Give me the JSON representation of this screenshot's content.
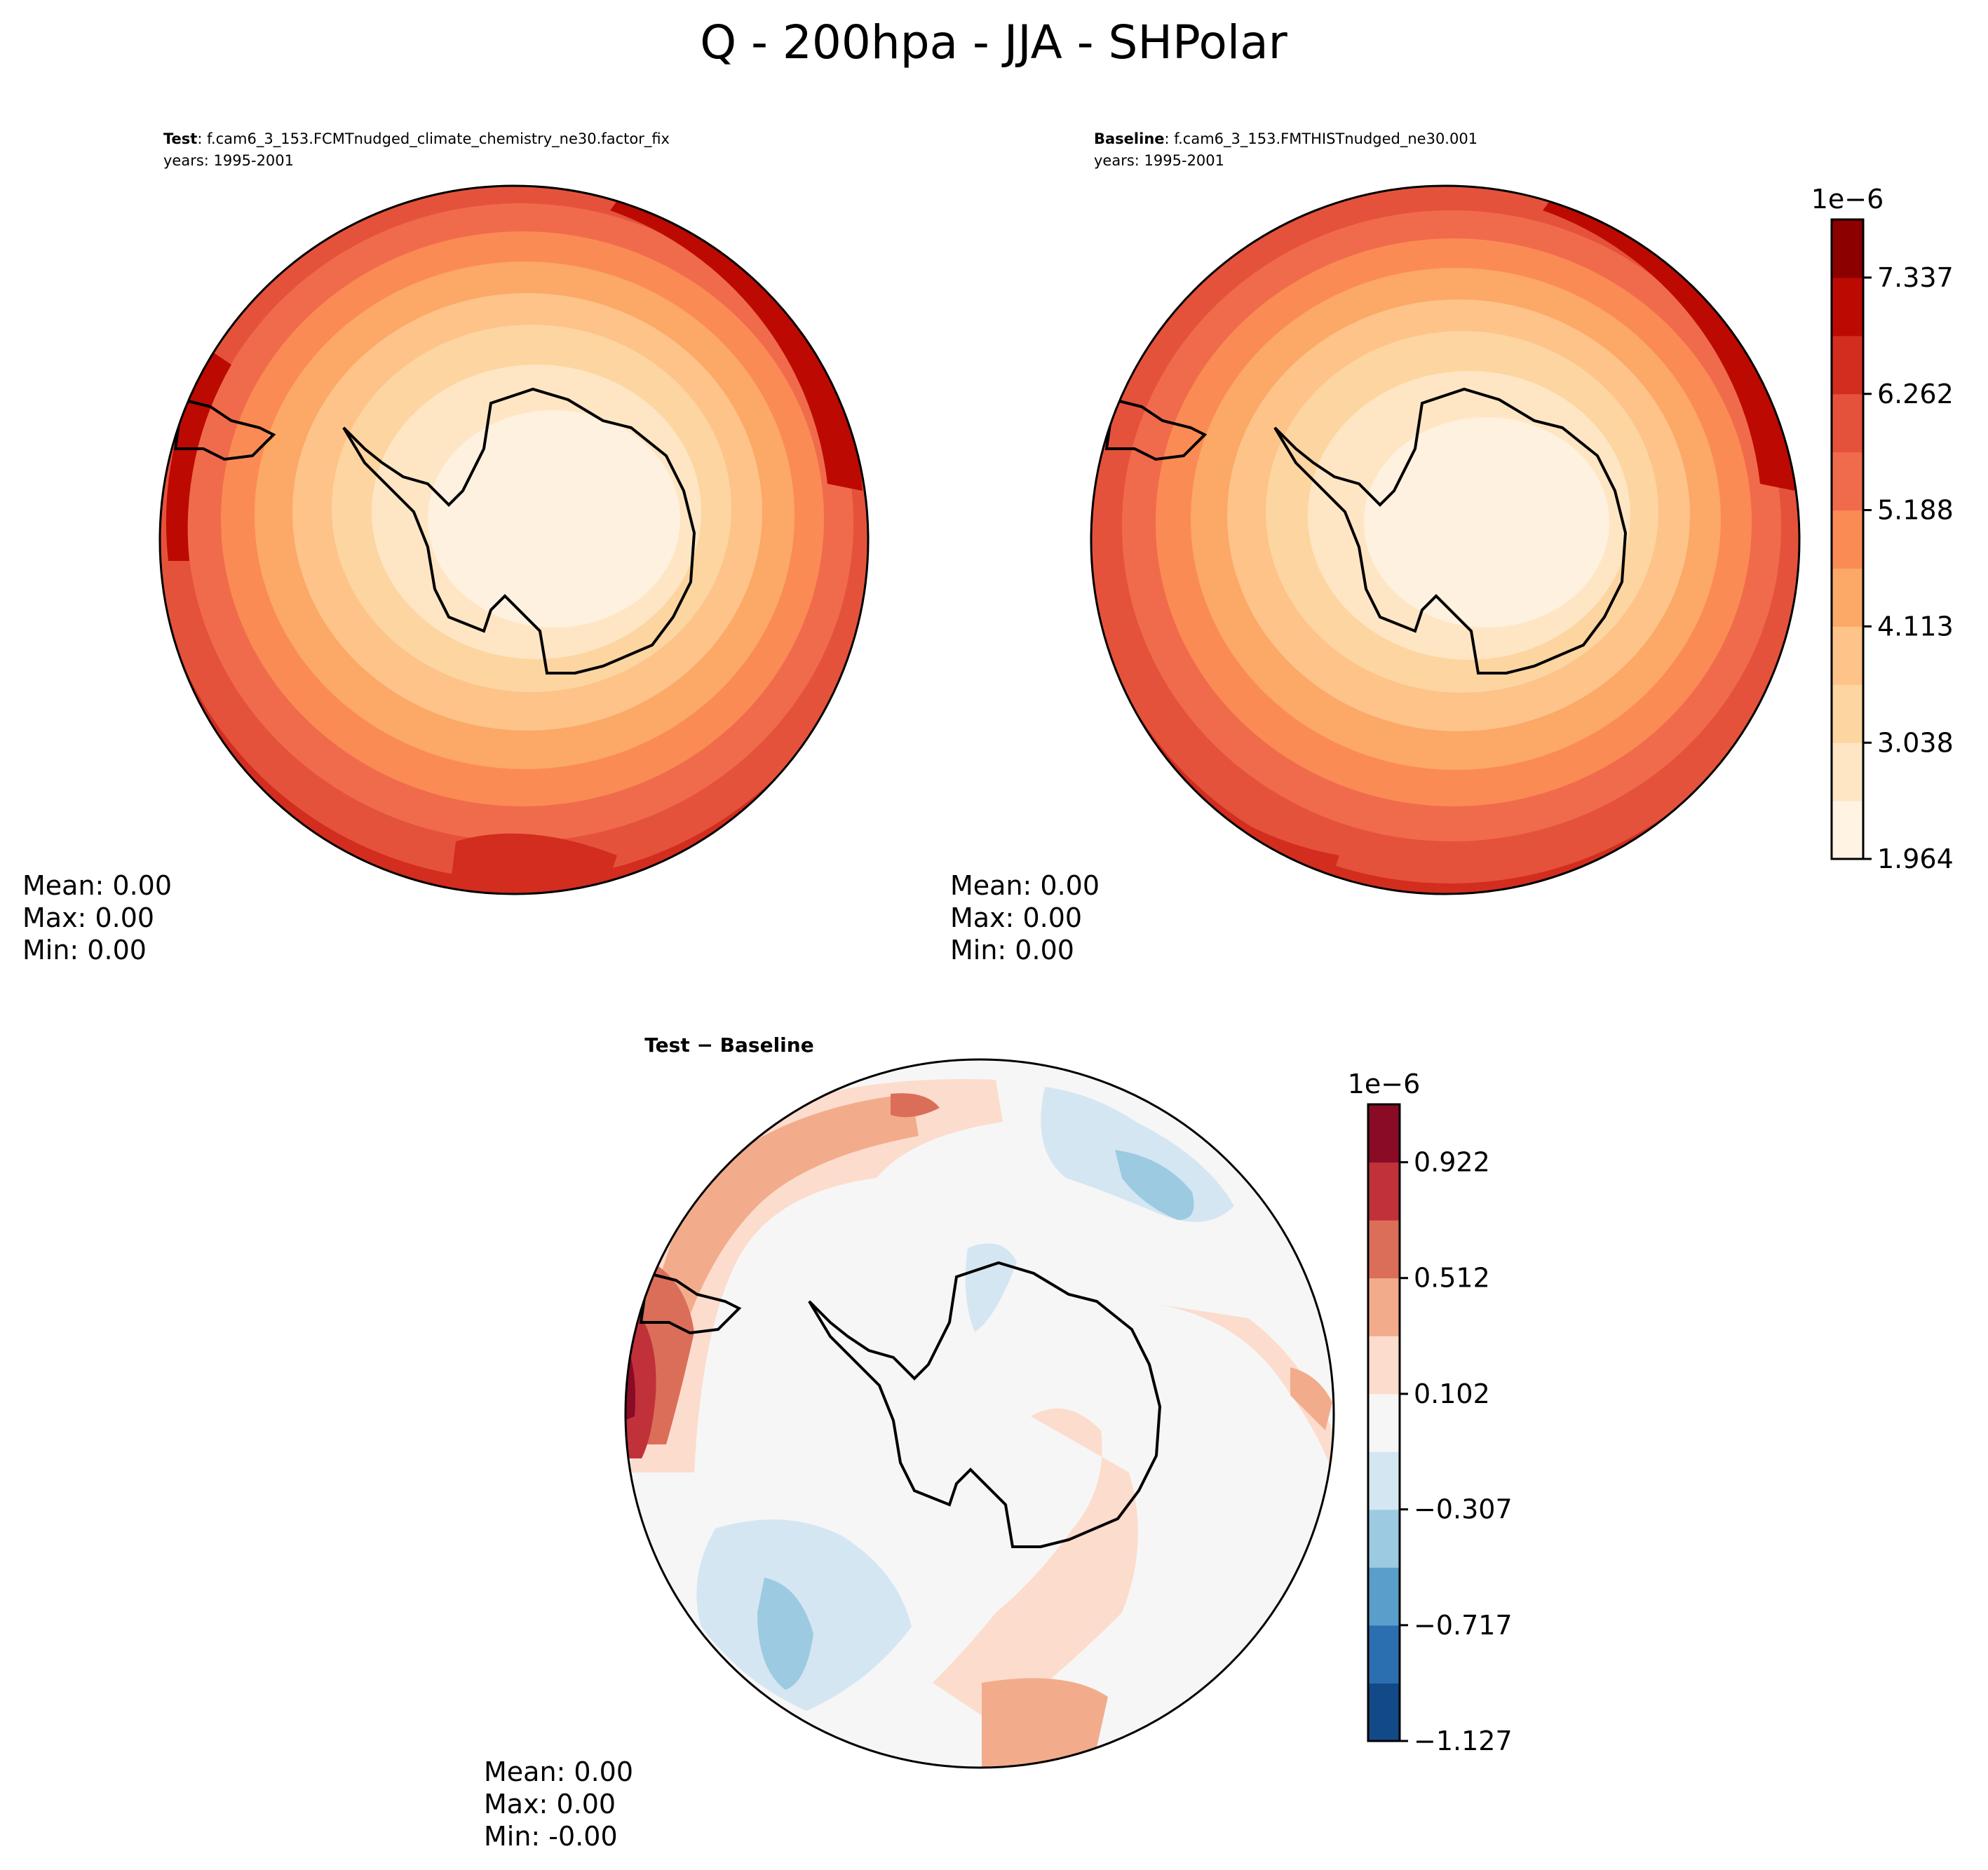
{
  "figure": {
    "title": "Q - 200hpa - JJA - SHPolar"
  },
  "panels": [
    {
      "id": "test",
      "label_bold": "Test",
      "label_rest": ": f.cam6_3_153.FCMTnudged_climate_chemistry_ne30.factor_fix",
      "years": "years: 1995-2001",
      "stats": {
        "mean": "Mean:  0.00",
        "max": "Max:  0.00",
        "min": "Min:  0.00"
      }
    },
    {
      "id": "baseline",
      "label_bold": "Baseline",
      "label_rest": ": f.cam6_3_153.FMTHISTnudged_ne30.001",
      "years": "years: 1995-2001",
      "stats": {
        "mean": "Mean:  0.00",
        "max": "Max:  0.00",
        "min": "Min:  0.00"
      }
    },
    {
      "id": "diff",
      "label": "Test − Baseline",
      "stats": {
        "mean": "Mean:  0.00",
        "max": "Max:  0.00",
        "min": "Min: -0.00"
      }
    }
  ],
  "chart_data": [
    {
      "type": "heatmap",
      "projection": "south-polar-stereographic",
      "panel": "test",
      "colormap": "OrRd-like",
      "levels_min": 1.964,
      "levels_max": 7.874,
      "contour_field": "increasing from pole (low) to rim (high)"
    },
    {
      "type": "heatmap",
      "projection": "south-polar-stereographic",
      "panel": "baseline",
      "colorbar": {
        "multiplier": "1e−6",
        "ticks": [
          "1.964",
          "3.038",
          "4.113",
          "5.188",
          "6.262",
          "7.337"
        ],
        "tick_values": [
          1.964,
          3.038,
          4.113,
          5.188,
          6.262,
          7.337
        ],
        "range": [
          1.964,
          7.874
        ],
        "colors": [
          "#fff4e3",
          "#fee6c4",
          "#fdd5a0",
          "#fdc389",
          "#fca867",
          "#fb8b54",
          "#f06b4b",
          "#e5523b",
          "#d22d1f",
          "#bc0a02",
          "#8c0000"
        ]
      }
    },
    {
      "type": "heatmap",
      "projection": "south-polar-stereographic",
      "panel": "diff",
      "colorbar": {
        "multiplier": "1e−6",
        "ticks": [
          "−1.127",
          "−0.717",
          "−0.307",
          "0.102",
          "0.512",
          "0.922"
        ],
        "tick_values": [
          -1.127,
          -0.717,
          -0.307,
          0.102,
          0.512,
          0.922
        ],
        "range": [
          -1.127,
          1.127
        ],
        "colors": [
          "#124a87",
          "#2c6fb1",
          "#5a9ecb",
          "#9ccae1",
          "#d4e6f2",
          "#f6f6f6",
          "#fcdccd",
          "#f2ac8c",
          "#db6e59",
          "#c0313a",
          "#890b26"
        ]
      }
    }
  ]
}
